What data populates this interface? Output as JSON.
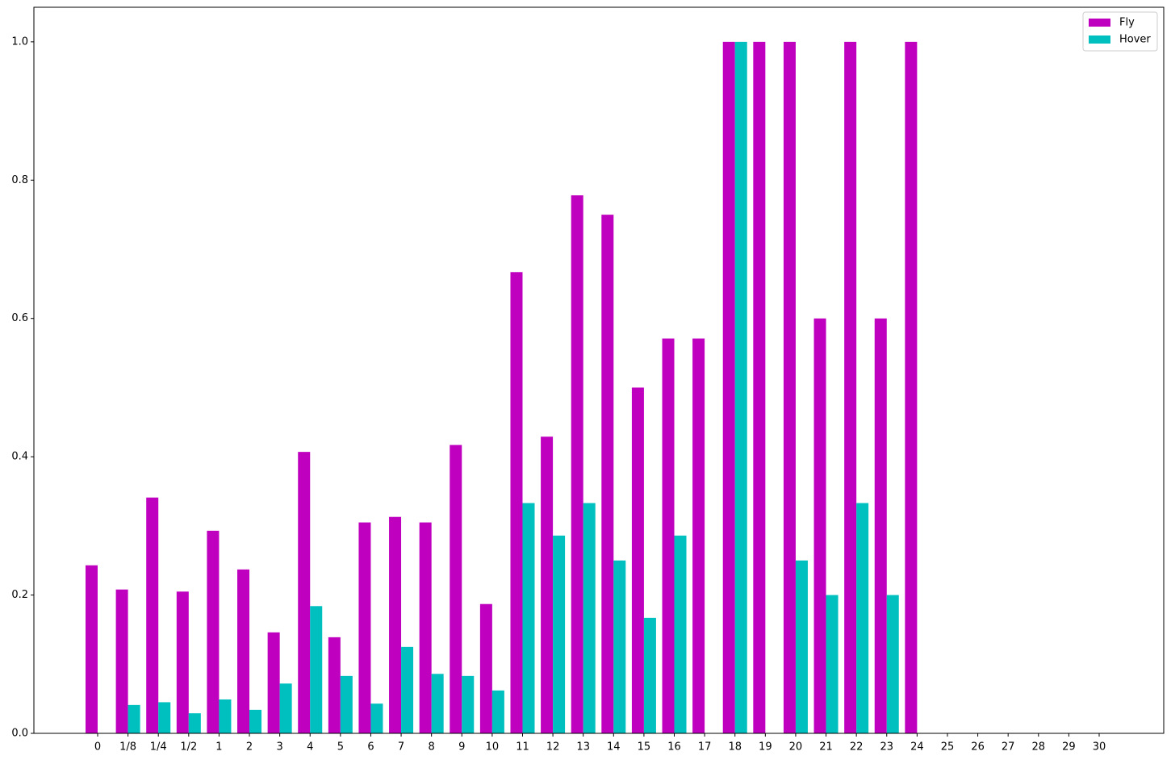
{
  "chart_data": {
    "type": "bar",
    "categories": [
      "0",
      "1/8",
      "1/4",
      "1/2",
      "1",
      "2",
      "3",
      "4",
      "5",
      "6",
      "7",
      "8",
      "9",
      "10",
      "11",
      "12",
      "13",
      "14",
      "15",
      "16",
      "17",
      "18",
      "19",
      "20",
      "21",
      "22",
      "23",
      "24",
      "25",
      "26",
      "27",
      "28",
      "29",
      "30"
    ],
    "series": [
      {
        "name": "Fly",
        "color": "#bf00bf",
        "values": [
          0.243,
          0.208,
          0.341,
          0.205,
          0.293,
          0.237,
          0.146,
          0.407,
          0.139,
          0.305,
          0.313,
          0.305,
          0.417,
          0.187,
          0.667,
          0.429,
          0.778,
          0.75,
          0.5,
          0.571,
          0.571,
          1,
          1,
          1,
          0.6,
          1,
          0.6,
          1,
          null,
          null,
          null,
          null,
          null,
          null
        ]
      },
      {
        "name": "Hover",
        "color": "#00bfbf",
        "values": [
          0,
          0.041,
          0.045,
          0.029,
          0.049,
          0.034,
          0.072,
          0.184,
          0.083,
          0.043,
          0.125,
          0.086,
          0.083,
          0.062,
          0.333,
          0.286,
          0.333,
          0.25,
          0.167,
          0.286,
          0,
          1,
          0,
          0.25,
          0.2,
          0.333,
          0.2,
          0,
          null,
          null,
          null,
          null,
          null,
          null
        ]
      }
    ],
    "ylim": [
      0,
      1.05
    ],
    "yticks": [
      {
        "value": 0,
        "label": "0.0"
      },
      {
        "value": 0.2,
        "label": "0.2"
      },
      {
        "value": 0.4,
        "label": "0.4"
      },
      {
        "value": 0.6,
        "label": "0.6"
      },
      {
        "value": 0.8,
        "label": "0.8"
      },
      {
        "value": 1,
        "label": "1.0"
      }
    ],
    "legend": "upper right"
  }
}
